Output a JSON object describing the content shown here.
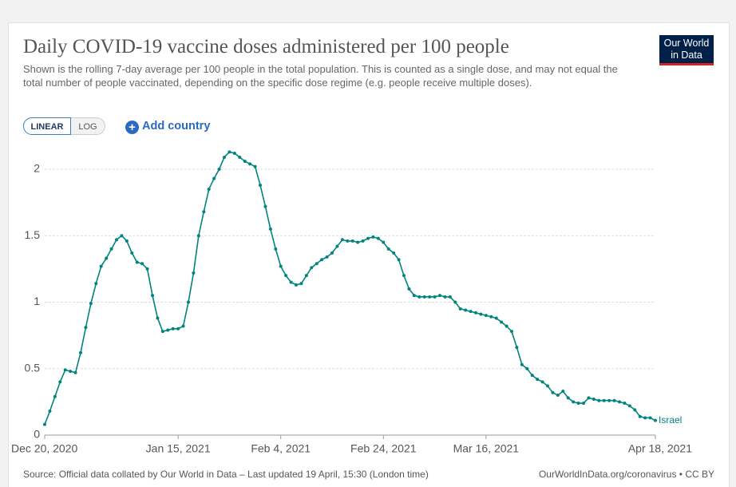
{
  "chart_data": {
    "type": "line",
    "title": "Daily COVID-19 vaccine doses administered per 100 people",
    "subtitle": "Shown is the rolling 7-day average per 100 people in the total population. This is counted as a single dose, and may not equal the total number of people vaccinated, depending on the specific dose regime (e.g. people receive multiple doses).",
    "source": "Source: Official data collated by Our World in Data – Last updated 19 April, 15:30 (London time)",
    "attribution": "OurWorldInData.org/coronavirus • CC BY",
    "x": [
      "2020-12-20",
      "2020-12-21",
      "2020-12-22",
      "2020-12-23",
      "2020-12-24",
      "2020-12-25",
      "2020-12-26",
      "2020-12-27",
      "2020-12-28",
      "2020-12-29",
      "2020-12-30",
      "2020-12-31",
      "2021-01-01",
      "2021-01-02",
      "2021-01-03",
      "2021-01-04",
      "2021-01-05",
      "2021-01-06",
      "2021-01-07",
      "2021-01-08",
      "2021-01-09",
      "2021-01-10",
      "2021-01-11",
      "2021-01-12",
      "2021-01-13",
      "2021-01-14",
      "2021-01-15",
      "2021-01-16",
      "2021-01-17",
      "2021-01-18",
      "2021-01-19",
      "2021-01-20",
      "2021-01-21",
      "2021-01-22",
      "2021-01-23",
      "2021-01-24",
      "2021-01-25",
      "2021-01-26",
      "2021-01-27",
      "2021-01-28",
      "2021-01-29",
      "2021-01-30",
      "2021-01-31",
      "2021-02-01",
      "2021-02-02",
      "2021-02-03",
      "2021-02-04",
      "2021-02-05",
      "2021-02-06",
      "2021-02-07",
      "2021-02-08",
      "2021-02-09",
      "2021-02-10",
      "2021-02-11",
      "2021-02-12",
      "2021-02-13",
      "2021-02-14",
      "2021-02-15",
      "2021-02-16",
      "2021-02-17",
      "2021-02-18",
      "2021-02-19",
      "2021-02-20",
      "2021-02-21",
      "2021-02-22",
      "2021-02-23",
      "2021-02-24",
      "2021-02-25",
      "2021-02-26",
      "2021-02-27",
      "2021-02-28",
      "2021-03-01",
      "2021-03-02",
      "2021-03-03",
      "2021-03-04",
      "2021-03-05",
      "2021-03-06",
      "2021-03-07",
      "2021-03-08",
      "2021-03-09",
      "2021-03-10",
      "2021-03-11",
      "2021-03-12",
      "2021-03-13",
      "2021-03-14",
      "2021-03-15",
      "2021-03-16",
      "2021-03-17",
      "2021-03-18",
      "2021-03-19",
      "2021-03-20",
      "2021-03-21",
      "2021-03-22",
      "2021-03-23",
      "2021-03-24",
      "2021-03-25",
      "2021-03-26",
      "2021-03-27",
      "2021-03-28",
      "2021-03-29",
      "2021-03-30",
      "2021-03-31",
      "2021-04-01",
      "2021-04-02",
      "2021-04-03",
      "2021-04-04",
      "2021-04-05",
      "2021-04-06",
      "2021-04-07",
      "2021-04-08",
      "2021-04-09",
      "2021-04-10",
      "2021-04-11",
      "2021-04-12",
      "2021-04-13",
      "2021-04-14",
      "2021-04-15",
      "2021-04-16",
      "2021-04-17",
      "2021-04-18"
    ],
    "series": [
      {
        "name": "Israel",
        "color": "#00847e",
        "values": [
          0.08,
          0.18,
          0.29,
          0.4,
          0.49,
          0.48,
          0.47,
          0.62,
          0.81,
          0.99,
          1.14,
          1.27,
          1.33,
          1.4,
          1.47,
          1.5,
          1.46,
          1.37,
          1.3,
          1.29,
          1.25,
          1.05,
          0.88,
          0.78,
          0.79,
          0.8,
          0.8,
          0.82,
          1.0,
          1.22,
          1.5,
          1.68,
          1.85,
          1.93,
          2.0,
          2.09,
          2.13,
          2.12,
          2.09,
          2.06,
          2.04,
          2.02,
          1.88,
          1.72,
          1.55,
          1.4,
          1.27,
          1.2,
          1.15,
          1.13,
          1.14,
          1.2,
          1.26,
          1.29,
          1.32,
          1.34,
          1.37,
          1.42,
          1.47,
          1.46,
          1.46,
          1.45,
          1.46,
          1.48,
          1.49,
          1.48,
          1.45,
          1.4,
          1.37,
          1.32,
          1.2,
          1.1,
          1.05,
          1.04,
          1.04,
          1.04,
          1.04,
          1.05,
          1.04,
          1.04,
          1.0,
          0.95,
          0.94,
          0.93,
          0.92,
          0.91,
          0.9,
          0.89,
          0.88,
          0.85,
          0.82,
          0.78,
          0.66,
          0.53,
          0.5,
          0.45,
          0.42,
          0.4,
          0.37,
          0.32,
          0.3,
          0.33,
          0.28,
          0.25,
          0.24,
          0.24,
          0.28,
          0.27,
          0.26,
          0.26,
          0.26,
          0.26,
          0.25,
          0.24,
          0.22,
          0.19,
          0.14,
          0.13,
          0.13,
          0.11
        ]
      }
    ],
    "xlim": [
      "2020-12-20",
      "2021-04-18"
    ],
    "xticks": [
      {
        "value": "2020-12-20",
        "label": "Dec 20, 2020"
      },
      {
        "value": "2021-01-15",
        "label": "Jan 15, 2021"
      },
      {
        "value": "2021-02-04",
        "label": "Feb 4, 2021"
      },
      {
        "value": "2021-02-24",
        "label": "Feb 24, 2021"
      },
      {
        "value": "2021-03-16",
        "label": "Mar 16, 2021"
      },
      {
        "value": "2021-04-18",
        "label": "Apr 18, 2021"
      }
    ],
    "ylim": [
      0,
      2.15
    ],
    "yticks": [
      0,
      0.5,
      1,
      1.5,
      2
    ],
    "grid": true
  },
  "controls": {
    "linear": "LINEAR",
    "log": "LOG",
    "add_country": "Add country"
  },
  "logo": [
    "Our World",
    "in Data"
  ]
}
